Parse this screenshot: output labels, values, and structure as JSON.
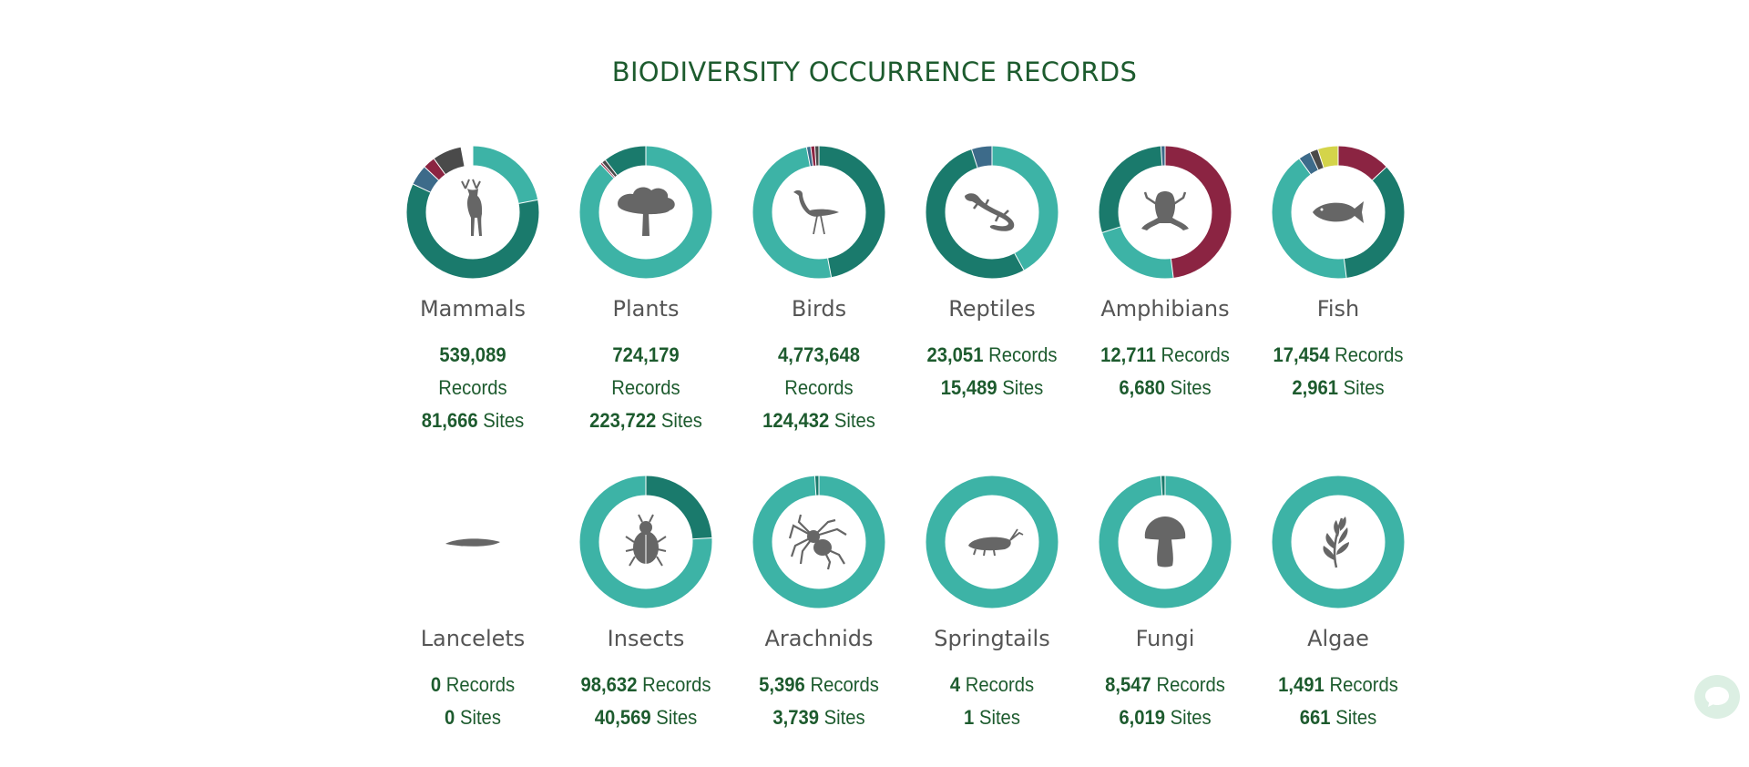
{
  "title": "BIODIVERSITY OCCURRENCE RECORDS",
  "colors": {
    "title": "#1d5b2e",
    "dark_teal": "#1a7a6c",
    "light_teal": "#3db3a6",
    "crimson": "#8b2442",
    "steel_blue": "#3d6b8a",
    "dark_gray": "#4a4a4a",
    "yellow": "#d4d44a",
    "icon_gray": "#666666"
  },
  "groups": [
    {
      "name": "Mammals",
      "icon": "antelope-icon",
      "records": "539,089",
      "records_label": "Records",
      "sites": "81,666",
      "sites_label": "Sites",
      "slices": [
        {
          "c": "#3db3a6",
          "v": 0.22
        },
        {
          "c": "#1a7a6c",
          "v": 0.6
        },
        {
          "c": "#3d6b8a",
          "v": 0.05
        },
        {
          "c": "#8b2442",
          "v": 0.03
        },
        {
          "c": "#4a4a4a",
          "v": 0.07
        }
      ]
    },
    {
      "name": "Plants",
      "icon": "tree-icon",
      "records": "724,179",
      "records_label": "Records",
      "sites": "223,722",
      "sites_label": "Sites",
      "slices": [
        {
          "c": "#3db3a6",
          "v": 0.88
        },
        {
          "c": "#8b2442",
          "v": 0.005
        },
        {
          "c": "#4a4a4a",
          "v": 0.01
        },
        {
          "c": "#1a7a6c",
          "v": 0.105
        }
      ]
    },
    {
      "name": "Birds",
      "icon": "crane-bird-icon",
      "records": "4,773,648",
      "records_label": "Records",
      "sites": "124,432",
      "sites_label": "Sites",
      "slices": [
        {
          "c": "#1a7a6c",
          "v": 0.47
        },
        {
          "c": "#3db3a6",
          "v": 0.5
        },
        {
          "c": "#3d6b8a",
          "v": 0.01
        },
        {
          "c": "#8b2442",
          "v": 0.01
        },
        {
          "c": "#4a4a4a",
          "v": 0.01
        }
      ]
    },
    {
      "name": "Reptiles",
      "icon": "lizard-icon",
      "records": "23,051",
      "records_label": "Records",
      "sites": "15,489",
      "sites_label": "Sites",
      "slices": [
        {
          "c": "#3db3a6",
          "v": 0.42
        },
        {
          "c": "#1a7a6c",
          "v": 0.53
        },
        {
          "c": "#3d6b8a",
          "v": 0.05
        }
      ]
    },
    {
      "name": "Amphibians",
      "icon": "frog-icon",
      "records": "12,711",
      "records_label": "Records",
      "sites": "6,680",
      "sites_label": "Sites",
      "slices": [
        {
          "c": "#8b2442",
          "v": 0.48
        },
        {
          "c": "#3db3a6",
          "v": 0.22
        },
        {
          "c": "#1a7a6c",
          "v": 0.29
        },
        {
          "c": "#3d6b8a",
          "v": 0.01
        }
      ]
    },
    {
      "name": "Fish",
      "icon": "fish-icon",
      "records": "17,454",
      "records_label": "Records",
      "sites": "2,961",
      "sites_label": "Sites",
      "slices": [
        {
          "c": "#8b2442",
          "v": 0.13
        },
        {
          "c": "#1a7a6c",
          "v": 0.35
        },
        {
          "c": "#3db3a6",
          "v": 0.42
        },
        {
          "c": "#3d6b8a",
          "v": 0.03
        },
        {
          "c": "#4a4a4a",
          "v": 0.02
        },
        {
          "c": "#d4d44a",
          "v": 0.05
        }
      ]
    },
    {
      "name": "Lancelets",
      "icon": "lancelet-icon",
      "records": "0",
      "records_label": "Records",
      "sites": "0",
      "sites_label": "Sites",
      "slices": []
    },
    {
      "name": "Insects",
      "icon": "beetle-icon",
      "records": "98,632",
      "records_label": "Records",
      "sites": "40,569",
      "sites_label": "Sites",
      "slices": [
        {
          "c": "#1a7a6c",
          "v": 0.24
        },
        {
          "c": "#3db3a6",
          "v": 0.76
        }
      ]
    },
    {
      "name": "Arachnids",
      "icon": "spider-icon",
      "records": "5,396",
      "records_label": "Records",
      "sites": "3,739",
      "sites_label": "Sites",
      "slices": [
        {
          "c": "#3db3a6",
          "v": 0.99
        },
        {
          "c": "#1a7a6c",
          "v": 0.01
        }
      ]
    },
    {
      "name": "Springtails",
      "icon": "springtail-icon",
      "records": "4",
      "records_label": "Records",
      "sites": "1",
      "sites_label": "Sites",
      "slices": [
        {
          "c": "#3db3a6",
          "v": 1.0
        }
      ]
    },
    {
      "name": "Fungi",
      "icon": "mushroom-icon",
      "records": "8,547",
      "records_label": "Records",
      "sites": "6,019",
      "sites_label": "Sites",
      "slices": [
        {
          "c": "#3db3a6",
          "v": 0.99
        },
        {
          "c": "#1a7a6c",
          "v": 0.01
        }
      ]
    },
    {
      "name": "Algae",
      "icon": "seaweed-icon",
      "records": "1,491",
      "records_label": "Records",
      "sites": "661",
      "sites_label": "Sites",
      "slices": [
        {
          "c": "#3db3a6",
          "v": 1.0
        }
      ]
    }
  ],
  "chat": {
    "icon": "chat-bubble-icon"
  }
}
